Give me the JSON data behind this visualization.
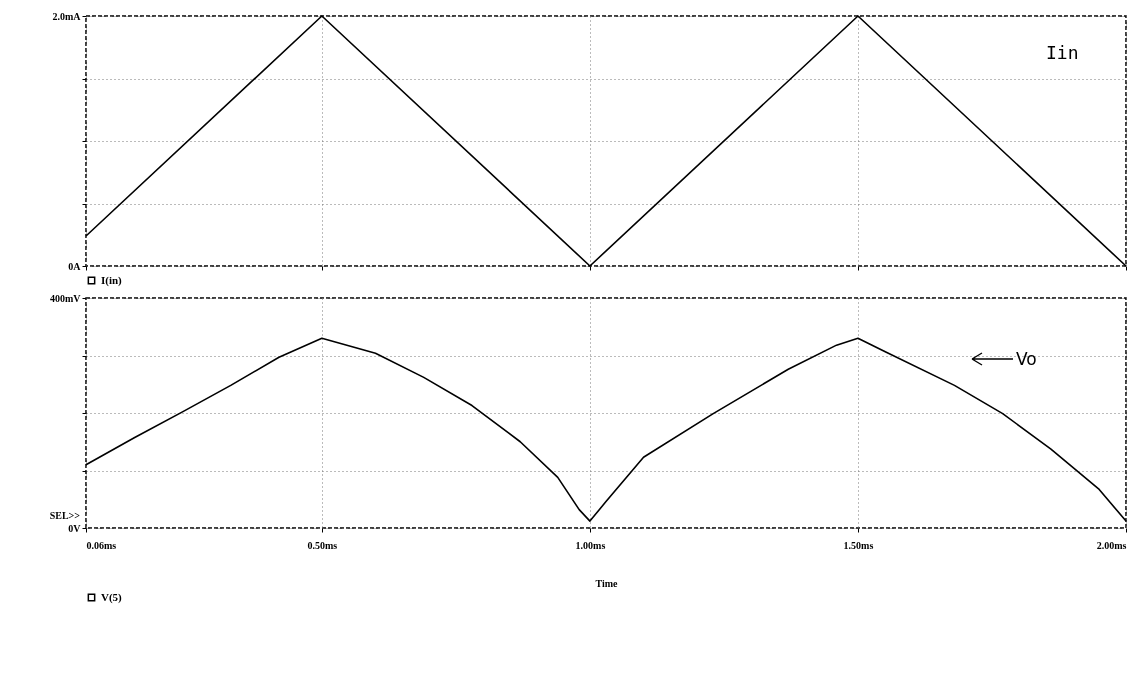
{
  "chart_data": [
    {
      "type": "line",
      "xlim": [
        0.06,
        2.0
      ],
      "xticks": [
        {
          "value": 0.06,
          "label": null
        },
        {
          "value": 0.5,
          "label": null
        },
        {
          "value": 1.0,
          "label": null
        },
        {
          "value": 1.5,
          "label": null
        },
        {
          "value": 2.0,
          "label": null
        }
      ],
      "ylim": [
        0,
        2
      ],
      "yticks": [
        {
          "value": 0,
          "label": "0A"
        },
        {
          "value": 0.5,
          "label": null
        },
        {
          "value": 1,
          "label": null
        },
        {
          "value": 1.5,
          "label": null
        },
        {
          "value": 2,
          "label": "2.0mA"
        }
      ],
      "grid": true,
      "legend": "bottom left",
      "tick_labels": "y",
      "series": [
        {
          "name": "I(in)",
          "color": "#000000",
          "x": [
            0.06,
            0.5,
            1.0,
            1.5,
            2.0
          ],
          "values": [
            0.24,
            2.0,
            0,
            2.0,
            0
          ]
        }
      ],
      "annotations": [
        "Iin"
      ]
    },
    {
      "type": "line",
      "xlabel": "Time",
      "xlim": [
        0.06,
        2.0
      ],
      "xticks": [
        {
          "value": 0.06,
          "label": "0.06ms"
        },
        {
          "value": 0.5,
          "label": "0.50ms"
        },
        {
          "value": 1.0,
          "label": "1.00ms"
        },
        {
          "value": 1.5,
          "label": "1.50ms"
        },
        {
          "value": 2.0,
          "label": "2.00ms"
        }
      ],
      "ylim": [
        0,
        400
      ],
      "yticks": [
        {
          "value": 0,
          "label": "0V"
        },
        {
          "value": 100,
          "label": null
        },
        {
          "value": 200,
          "label": null
        },
        {
          "value": 300,
          "label": null
        },
        {
          "value": 400,
          "label": "400mV"
        }
      ],
      "grid": true,
      "legend": "bottom left",
      "series": [
        {
          "name": "V(5)",
          "color": "#000000",
          "x": [
            0.06,
            0.15,
            0.24,
            0.33,
            0.42,
            0.5,
            0.6,
            0.69,
            0.78,
            0.87,
            0.94,
            0.98,
            1.0,
            1.03,
            1.1,
            1.23,
            1.37,
            1.46,
            1.5,
            1.55,
            1.68,
            1.77,
            1.86,
            1.95,
            2.0
          ],
          "values": [
            110,
            157,
            202,
            248,
            297,
            330,
            304,
            262,
            213,
            150,
            88,
            32,
            12,
            46,
            123,
            199,
            276,
            318,
            330,
            307,
            248,
            199,
            137,
            67,
            12
          ]
        }
      ],
      "annotations": [
        "Vo",
        "SEL>>"
      ]
    }
  ]
}
